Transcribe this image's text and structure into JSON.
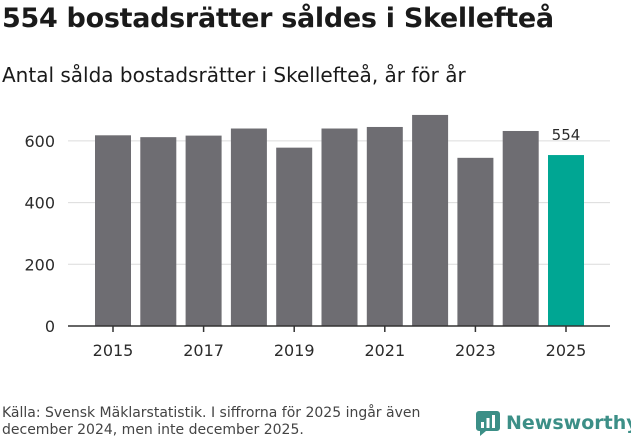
{
  "header": {
    "title": "554 bostadsrätter såldes i Skellefteå",
    "subtitle": "Antal sålda bostadsrätter i Skellefteå, år för år"
  },
  "footer": {
    "source": "Källa: Svensk Mäklarstatistik. I siffrorna för 2025 ingår även december 2024, men inte december 2025.",
    "logo_text": "Newsworthy"
  },
  "colors": {
    "bar": "#6e6d72",
    "highlight": "#00a693",
    "grid": "#dcdcdc",
    "brand": "#3c8f87"
  },
  "chart_data": {
    "type": "bar",
    "title": "Antal sålda bostadsrätter i Skellefteå, år för år",
    "categories": [
      "2015",
      "2016",
      "2017",
      "2018",
      "2019",
      "2020",
      "2021",
      "2022",
      "2023",
      "2024",
      "2025"
    ],
    "values": [
      618,
      612,
      617,
      640,
      578,
      640,
      645,
      684,
      545,
      632,
      554
    ],
    "x_tick_labels": [
      "2015",
      "2017",
      "2019",
      "2021",
      "2023",
      "2025"
    ],
    "y_ticks": [
      0,
      200,
      400,
      600
    ],
    "ylim": [
      0,
      700
    ],
    "xlabel": "",
    "ylabel": "",
    "highlight_category": "2025",
    "annotation": {
      "category": "2025",
      "text": "554"
    },
    "grid": true
  }
}
